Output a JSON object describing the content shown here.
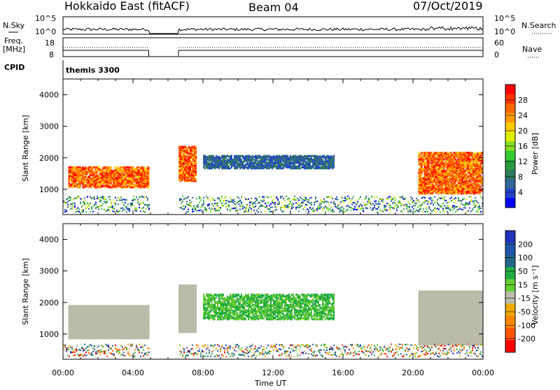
{
  "header": {
    "station": "Hokkaido East (fitACF)",
    "beam": "Beam 04",
    "date": "07/Oct/2019"
  },
  "sky_panel": {
    "left_label": "N.Sky",
    "right_label": "N.Search",
    "left_ticks": [
      "10^5",
      "10^0"
    ],
    "right_ticks": [
      "10^5",
      "10^0"
    ]
  },
  "freq_panel": {
    "left_label_1": "Freq.",
    "left_label_2": "[MHz]",
    "left_ticks": [
      "18",
      "8"
    ],
    "right_ticks": [
      "60",
      "0"
    ],
    "right_label": "Nave"
  },
  "cpid": {
    "label": "CPID",
    "value": "themis 3300"
  },
  "chart_data": [
    {
      "type": "heatmap",
      "name": "power",
      "ylabel": "Slant Range [km]",
      "xlabel": "Time UT",
      "x_ticks": [
        "00:00",
        "04:00",
        "08:00",
        "12:00",
        "16:00",
        "20:00",
        "00:00"
      ],
      "y_ticks": [
        "1000",
        "2000",
        "3000",
        "4000"
      ],
      "ylim": [
        200,
        4500
      ],
      "xlim_hours": [
        0,
        24
      ],
      "data_gap_hours": [
        4.9,
        6.6
      ],
      "colorbar": {
        "label": "Power [dB]",
        "ticks": [
          "28",
          "24",
          "20",
          "16",
          "12",
          "8",
          "4"
        ],
        "colors": [
          "#ff0000",
          "#ff3300",
          "#ff6600",
          "#ff9900",
          "#ffcc00",
          "#ddee00",
          "#88dd22",
          "#33cc33",
          "#2a9940",
          "#2e7a5a",
          "#336699",
          "#2244cc",
          "#0000ff"
        ]
      },
      "scatter_regions": [
        {
          "from_h": 0.3,
          "to_h": 4.9,
          "range_km": [
            1100,
            1750
          ],
          "max_db": 30
        },
        {
          "from_h": 6.6,
          "to_h": 7.6,
          "range_km": [
            1300,
            2400
          ],
          "max_db": 30
        },
        {
          "from_h": 8.0,
          "to_h": 15.5,
          "range_km": [
            1700,
            2100
          ],
          "max_db": 12
        },
        {
          "from_h": 20.3,
          "to_h": 24.0,
          "range_km": [
            900,
            2200
          ],
          "max_db": 30
        }
      ]
    },
    {
      "type": "heatmap",
      "name": "velocity",
      "ylabel": "Slant Range [km]",
      "xlabel": "Time UT",
      "x_ticks": [
        "00:00",
        "04:00",
        "08:00",
        "12:00",
        "16:00",
        "20:00",
        "00:00"
      ],
      "y_ticks": [
        "1000",
        "2000",
        "3000",
        "4000"
      ],
      "ylim": [
        200,
        4500
      ],
      "colorbar": {
        "label": "Velocity [m s⁻¹]",
        "ticks": [
          "200",
          "100",
          "50",
          "15",
          "-15",
          "-50",
          "-100",
          "-200"
        ],
        "colors": [
          "#2233bb",
          "#2255aa",
          "#226688",
          "#22aa44",
          "#66cc33",
          "#bbbbaa",
          "#eeaa00",
          "#ff8800",
          "#ff5500",
          "#ff0000"
        ]
      },
      "ground_scatter_color": "#bbbbaa"
    }
  ]
}
